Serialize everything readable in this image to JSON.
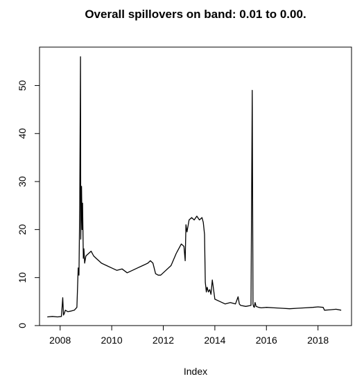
{
  "chart_data": {
    "type": "line",
    "title": "Overall spillovers on band: 0.01 to 0.00.",
    "xlabel": "Index",
    "ylabel": "",
    "xlim": [
      2007.2,
      2019.3
    ],
    "ylim": [
      0,
      58
    ],
    "x_ticks": [
      2008,
      2010,
      2012,
      2014,
      2016,
      2018
    ],
    "y_ticks": [
      0,
      10,
      20,
      30,
      40,
      50
    ],
    "grid": false,
    "legend": "none",
    "series": [
      {
        "color": "#000000",
        "x": [
          2007.5,
          2007.7,
          2007.9,
          2008.05,
          2008.1,
          2008.13,
          2008.16,
          2008.2,
          2008.3,
          2008.4,
          2008.55,
          2008.65,
          2008.7,
          2008.73,
          2008.76,
          2008.79,
          2008.8,
          2008.83,
          2008.85,
          2008.87,
          2008.9,
          2008.92,
          2008.95,
          2009.0,
          2009.1,
          2009.2,
          2009.3,
          2009.4,
          2009.5,
          2009.6,
          2009.8,
          2010.0,
          2010.2,
          2010.4,
          2010.6,
          2010.8,
          2011.0,
          2011.2,
          2011.4,
          2011.5,
          2011.6,
          2011.7,
          2011.8,
          2011.9,
          2012.1,
          2012.3,
          2012.5,
          2012.7,
          2012.8,
          2012.85,
          2012.88,
          2012.92,
          2013.0,
          2013.1,
          2013.2,
          2013.3,
          2013.4,
          2013.5,
          2013.55,
          2013.6,
          2013.63,
          2013.67,
          2013.7,
          2013.75,
          2013.8,
          2013.85,
          2013.9,
          2014.0,
          2014.2,
          2014.4,
          2014.6,
          2014.8,
          2014.9,
          2014.95,
          2015.0,
          2015.2,
          2015.4,
          2015.45,
          2015.48,
          2015.5,
          2015.53,
          2015.56,
          2015.6,
          2015.65,
          2015.7,
          2015.8,
          2016.0,
          2016.3,
          2016.6,
          2016.9,
          2017.2,
          2017.5,
          2017.8,
          2018.0,
          2018.2,
          2018.25,
          2018.5,
          2018.7,
          2018.9
        ],
        "values": [
          1.8,
          1.9,
          1.8,
          1.9,
          5.8,
          2.2,
          2.5,
          3.2,
          2.9,
          3.0,
          3.2,
          3.8,
          12.0,
          10.5,
          25.0,
          56.0,
          18.0,
          29.0,
          20.0,
          25.5,
          14.0,
          16.0,
          13.0,
          14.5,
          15.0,
          15.5,
          14.5,
          14.0,
          13.5,
          13.0,
          12.5,
          12.0,
          11.5,
          11.8,
          11.0,
          11.5,
          12.0,
          12.5,
          13.0,
          13.5,
          13.0,
          10.8,
          10.5,
          10.5,
          11.5,
          12.5,
          15.0,
          17.0,
          16.5,
          13.5,
          21.0,
          19.5,
          22.0,
          22.5,
          22.0,
          22.8,
          22.0,
          22.5,
          21.5,
          19.0,
          9.0,
          7.0,
          8.0,
          7.0,
          7.5,
          6.5,
          9.5,
          5.5,
          5.0,
          4.5,
          4.8,
          4.5,
          6.0,
          4.5,
          4.2,
          4.0,
          4.2,
          49.0,
          4.5,
          4.0,
          3.8,
          4.8,
          4.0,
          3.9,
          3.8,
          3.7,
          3.8,
          3.7,
          3.6,
          3.5,
          3.6,
          3.7,
          3.8,
          3.9,
          3.8,
          3.2,
          3.3,
          3.4,
          3.2
        ]
      }
    ]
  }
}
